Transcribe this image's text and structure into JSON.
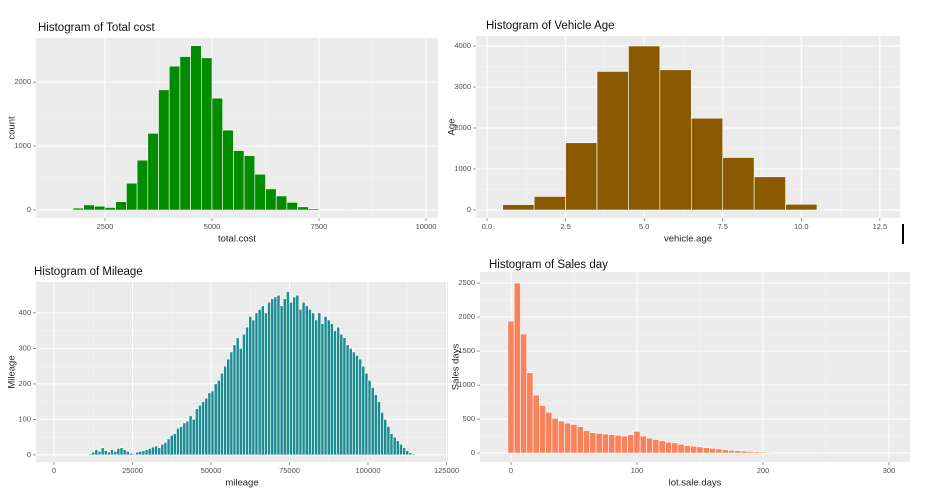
{
  "chart_data": [
    {
      "type": "histogram",
      "title": "Histogram of Total cost",
      "x_label": "total.cost",
      "y_label": "count",
      "color": "#008B00",
      "bins": [
        1500,
        1750,
        2000,
        2250,
        2500,
        2750,
        3000,
        3250,
        3500,
        3750,
        4000,
        4250,
        4500,
        4750,
        5000,
        5250,
        5500,
        5750,
        6000,
        6250,
        6500,
        6750,
        7000,
        7250,
        7500,
        7750,
        8000,
        8250
      ],
      "values": [
        10,
        30,
        80,
        60,
        40,
        130,
        420,
        780,
        1200,
        1880,
        2250,
        2400,
        2570,
        2380,
        1750,
        1250,
        930,
        850,
        560,
        330,
        220,
        120,
        50,
        20,
        10,
        5,
        2
      ],
      "xlim": [
        888,
        10280
      ],
      "ylim": [
        -125,
        2690
      ],
      "xticks": [
        2500,
        5000,
        7500,
        10000
      ],
      "yticks": [
        0,
        1000,
        2000
      ],
      "grid": true
    },
    {
      "type": "histogram",
      "title": "Histogram of Vehicle Age",
      "x_label": "vehicle.age",
      "y_label": "Age",
      "color": "#8B5A00",
      "bins": [
        0.5,
        1.5,
        2.5,
        3.5,
        4.5,
        5.5,
        6.5,
        7.5,
        8.5,
        9.5,
        10.5,
        11.5,
        12.5
      ],
      "values": [
        130,
        330,
        1640,
        3380,
        4000,
        3420,
        2240,
        1280,
        810,
        140,
        5,
        2
      ],
      "xlim": [
        -0.35,
        13.14
      ],
      "ylim": [
        -195,
        4244
      ],
      "xticks": [
        {
          "value": 0,
          "label": "0.0"
        },
        2.5,
        {
          "value": 5,
          "label": "5.0"
        },
        7.5,
        {
          "value": 10,
          "label": "10.0"
        },
        12.5
      ],
      "yticks": [
        0,
        1000,
        2000,
        3000,
        4000
      ],
      "grid": true
    },
    {
      "type": "histogram",
      "title": "Histogram of Mileage",
      "x_label": "mileage",
      "y_label": "Mileage",
      "color": "#1E8C93",
      "bins": [
        8000,
        9000,
        10000,
        11000,
        12000,
        13000,
        14000,
        15000,
        16000,
        17000,
        18000,
        19000,
        20000,
        21000,
        22000,
        23000,
        24000,
        25000,
        26000,
        27000,
        28000,
        29000,
        30000,
        31000,
        32000,
        33000,
        34000,
        35000,
        36000,
        37000,
        38000,
        39000,
        40000,
        41000,
        42000,
        43000,
        44000,
        45000,
        46000,
        47000,
        48000,
        49000,
        50000,
        51000,
        52000,
        53000,
        54000,
        55000,
        56000,
        57000,
        58000,
        59000,
        60000,
        61000,
        62000,
        63000,
        64000,
        65000,
        66000,
        67000,
        68000,
        69000,
        70000,
        71000,
        72000,
        73000,
        74000,
        75000,
        76000,
        77000,
        78000,
        79000,
        80000,
        81000,
        82000,
        83000,
        84000,
        85000,
        86000,
        87000,
        88000,
        89000,
        90000,
        91000,
        92000,
        93000,
        94000,
        95000,
        96000,
        97000,
        98000,
        99000,
        100000,
        101000,
        102000,
        103000,
        104000,
        105000,
        106000,
        107000,
        108000,
        109000,
        110000,
        111000,
        112000,
        113000,
        114000,
        115000,
        116000
      ],
      "values": [
        2,
        0,
        1,
        3,
        8,
        15,
        10,
        20,
        12,
        8,
        15,
        10,
        18,
        20,
        15,
        10,
        5,
        3,
        8,
        10,
        12,
        15,
        18,
        22,
        25,
        20,
        30,
        35,
        45,
        55,
        60,
        75,
        80,
        90,
        95,
        110,
        100,
        130,
        140,
        150,
        160,
        175,
        180,
        200,
        210,
        230,
        250,
        270,
        290,
        310,
        330,
        300,
        340,
        360,
        390,
        380,
        400,
        410,
        420,
        400,
        430,
        440,
        445,
        450,
        420,
        440,
        460,
        430,
        445,
        450,
        410,
        430,
        420,
        410,
        400,
        380,
        400,
        370,
        390,
        380,
        370,
        350,
        360,
        340,
        330,
        310,
        300,
        290,
        280,
        270,
        250,
        230,
        210,
        190,
        170,
        150,
        120,
        100,
        80,
        60,
        50,
        40,
        30,
        20,
        12,
        6,
        3,
        1
      ],
      "xlim": [
        -5730,
        125480
      ],
      "ylim": [
        -20,
        487
      ],
      "xticks": [
        0,
        25000,
        50000,
        75000,
        100000,
        125000
      ],
      "yticks": [
        0,
        100,
        200,
        300,
        400
      ],
      "grid": true
    },
    {
      "type": "histogram",
      "title": "Histogram of Sales day",
      "x_label": "lot.sale.days",
      "y_label": "Sales days",
      "color": "#F8825C",
      "bins": [
        -2.5,
        2.5,
        7.5,
        12.5,
        17.5,
        22.5,
        27.5,
        32.5,
        37.5,
        42.5,
        47.5,
        52.5,
        57.5,
        62.5,
        67.5,
        72.5,
        77.5,
        82.5,
        87.5,
        92.5,
        97.5,
        102.5,
        107.5,
        112.5,
        117.5,
        122.5,
        127.5,
        132.5,
        137.5,
        142.5,
        147.5,
        152.5,
        157.5,
        162.5,
        167.5,
        172.5,
        177.5,
        182.5,
        187.5,
        192.5,
        197.5,
        202.5,
        207.5,
        212.5,
        217.5,
        222.5,
        227.5,
        232.5,
        237.5,
        242.5,
        247.5,
        252.5,
        257.5,
        262.5,
        267.5,
        272.5,
        277.5,
        282.5,
        287.5,
        292.5,
        297.5,
        302.5
      ],
      "values": [
        1940,
        2500,
        1750,
        1180,
        850,
        700,
        600,
        510,
        470,
        440,
        420,
        390,
        330,
        300,
        290,
        280,
        270,
        260,
        250,
        270,
        320,
        250,
        220,
        200,
        180,
        160,
        150,
        130,
        110,
        100,
        90,
        80,
        70,
        60,
        50,
        40,
        35,
        30,
        25,
        20,
        15,
        12,
        10,
        8,
        6,
        5,
        4,
        3,
        3,
        2,
        2,
        1,
        1,
        1,
        1,
        1,
        1,
        1,
        1,
        1,
        1
      ],
      "xlim": [
        -24.6,
        316.7
      ],
      "ylim": [
        -132,
        2662
      ],
      "xticks": [
        0,
        100,
        200,
        300
      ],
      "yticks": [
        0,
        500,
        1000,
        1500,
        2000,
        2500
      ],
      "grid": true
    }
  ]
}
